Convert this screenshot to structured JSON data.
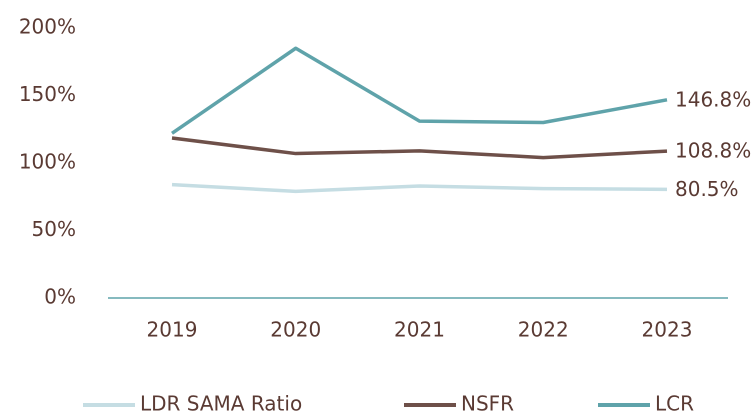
{
  "chart_data": {
    "type": "line",
    "categories": [
      "2019",
      "2020",
      "2021",
      "2022",
      "2023"
    ],
    "series": [
      {
        "name": "LDR SAMA Ratio",
        "color": "#c5dde3",
        "values": [
          84,
          79,
          83,
          81,
          80.5
        ],
        "value_labels": [
          null,
          null,
          null,
          null,
          "80.5%"
        ]
      },
      {
        "name": "NSFR",
        "color": "#6e5049",
        "values": [
          118.5,
          107,
          109,
          104,
          108.8
        ],
        "value_labels": [
          null,
          null,
          null,
          null,
          "108.8%"
        ]
      },
      {
        "name": "LCR",
        "color": "#5fa3aa",
        "values": [
          122,
          185,
          131,
          130,
          146.8
        ],
        "value_labels": [
          null,
          null,
          null,
          null,
          "146.8%"
        ]
      }
    ],
    "ylim": [
      0,
      200
    ],
    "yticks": [
      {
        "value": 0,
        "label": "0%"
      },
      {
        "value": 50,
        "label": "50%"
      },
      {
        "value": 100,
        "label": "100%"
      },
      {
        "value": 150,
        "label": "150%"
      },
      {
        "value": 200,
        "label": "200%"
      }
    ],
    "grid": false,
    "legend": "bottom"
  }
}
